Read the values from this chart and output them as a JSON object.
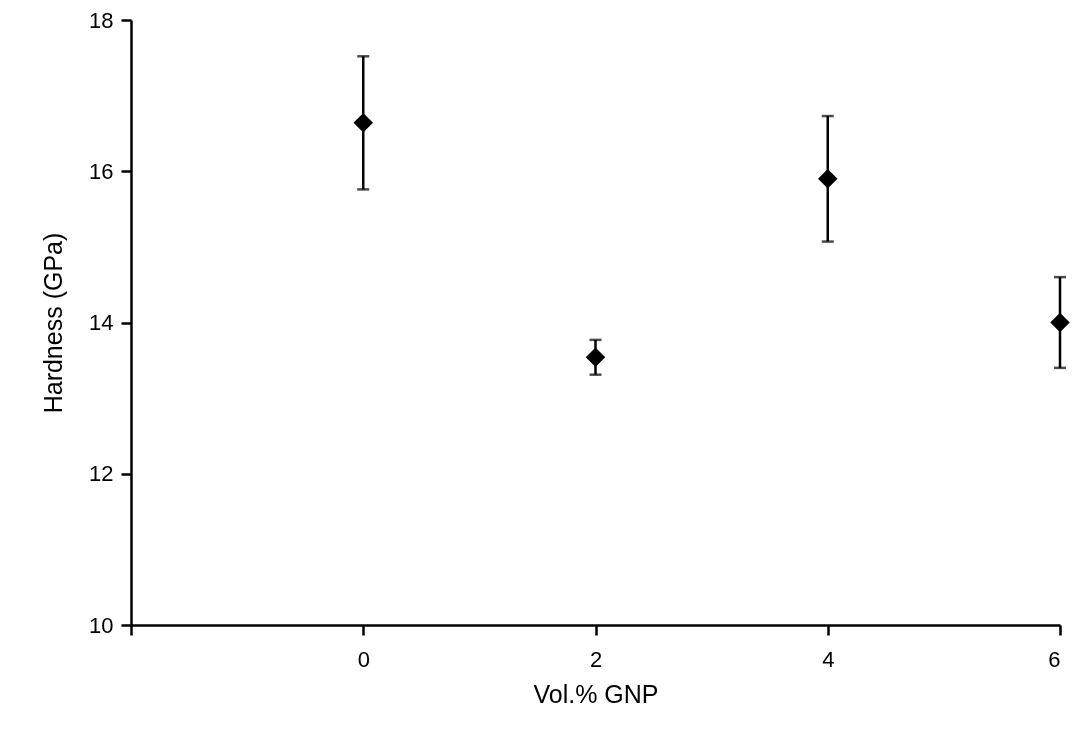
{
  "chart_data": {
    "type": "scatter",
    "xlabel": "Vol.% GNP",
    "ylabel": "Hardness (GPa)",
    "x": [
      0,
      2,
      4,
      6
    ],
    "series": [
      {
        "color": "#000000",
        "values": [
          16.64,
          13.54,
          15.9,
          14.0
        ],
        "errors": [
          0.88,
          0.23,
          0.83,
          0.6
        ]
      }
    ],
    "xlim": [
      -2,
      6
    ],
    "xticks": [
      {
        "value": -2,
        "label": null
      },
      0,
      2,
      4,
      6
    ],
    "ylim": [
      10,
      18
    ],
    "yticks": [
      10,
      12,
      14,
      16,
      18
    ],
    "marker": "diamond"
  }
}
